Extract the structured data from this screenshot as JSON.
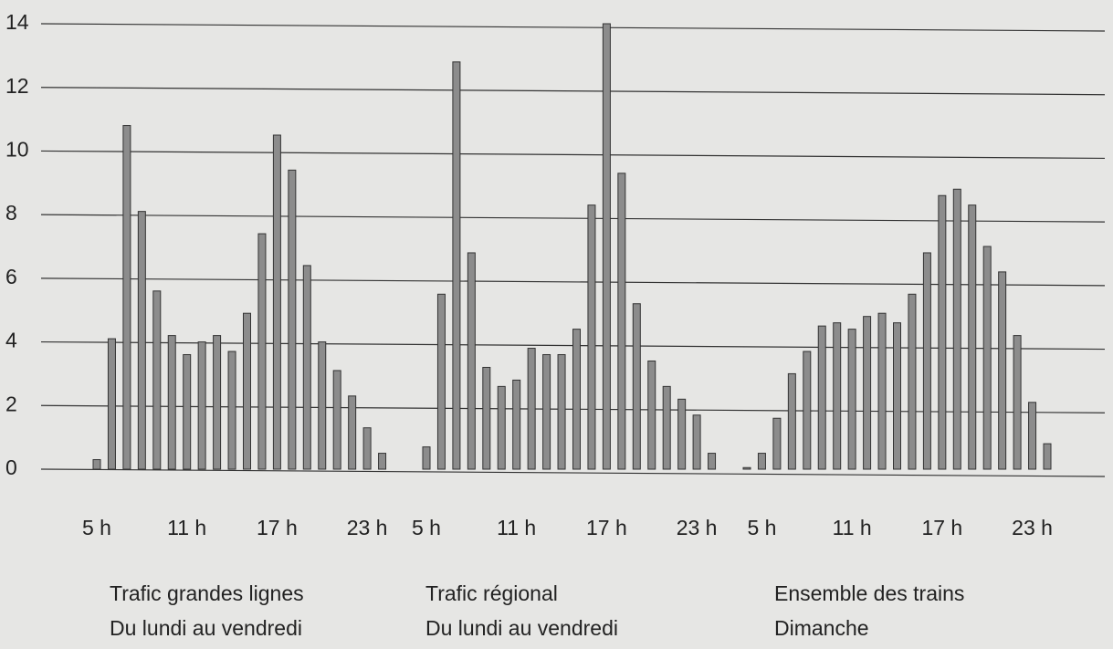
{
  "chart_data": {
    "type": "bar",
    "color": "#8c8c8c",
    "grid": true,
    "ylim": [
      0,
      14
    ],
    "yticks": [
      0,
      2,
      4,
      6,
      8,
      10,
      12,
      14
    ],
    "panels": [
      {
        "categories": [
          "5 h",
          null,
          null,
          null,
          null,
          null,
          "11 h",
          null,
          null,
          null,
          null,
          null,
          "17 h",
          null,
          null,
          null,
          null,
          null,
          "23 h",
          null
        ],
        "values": [
          0.3,
          4.1,
          10.8,
          8.1,
          5.6,
          4.2,
          3.6,
          4.0,
          4.2,
          3.7,
          4.9,
          7.4,
          10.5,
          9.4,
          6.4,
          4.0,
          3.1,
          2.3,
          1.3,
          0.5
        ],
        "caption": [
          "Trafic grandes lignes",
          "Du lundi au vendredi"
        ]
      },
      {
        "categories": [
          "5 h",
          null,
          null,
          null,
          null,
          null,
          "11 h",
          null,
          null,
          null,
          null,
          null,
          "17 h",
          null,
          null,
          null,
          null,
          null,
          "23 h",
          null
        ],
        "values": [
          0.7,
          5.5,
          12.8,
          6.8,
          3.2,
          2.6,
          2.8,
          3.8,
          3.6,
          3.6,
          4.4,
          8.3,
          14.0,
          9.3,
          5.2,
          3.4,
          2.6,
          2.2,
          1.7,
          0.5
        ],
        "caption": [
          "Trafic régional",
          "Du lundi au vendredi"
        ]
      },
      {
        "categories": [
          null,
          "5 h",
          null,
          null,
          null,
          null,
          null,
          "11 h",
          null,
          null,
          null,
          null,
          null,
          "17 h",
          null,
          null,
          null,
          null,
          null,
          "23 h",
          null
        ],
        "values": [
          0.05,
          0.5,
          1.6,
          3.0,
          3.7,
          4.5,
          4.6,
          4.4,
          4.8,
          4.9,
          4.6,
          5.5,
          6.8,
          8.6,
          8.8,
          8.3,
          7.0,
          6.2,
          4.2,
          2.1,
          0.8
        ],
        "caption": [
          "Ensemble des trains",
          "Dimanche"
        ]
      }
    ]
  }
}
